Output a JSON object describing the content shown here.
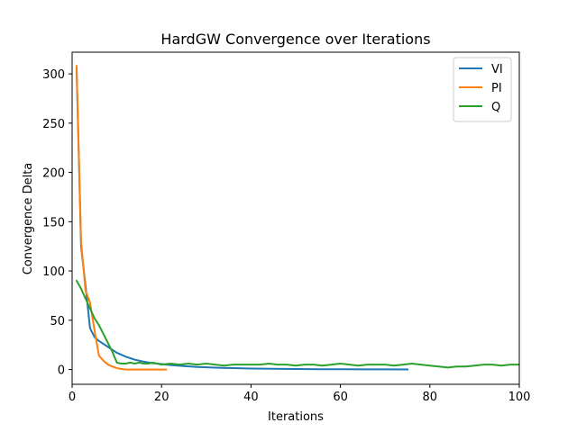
{
  "chart_data": {
    "type": "line",
    "title": "HardGW Convergence over Iterations",
    "xlabel": "Iterations",
    "ylabel": "Convergence Delta",
    "xlim": [
      0,
      100
    ],
    "ylim": [
      -15,
      322
    ],
    "xticks": [
      0,
      20,
      40,
      60,
      80,
      100
    ],
    "yticks": [
      0,
      50,
      100,
      150,
      200,
      250,
      300
    ],
    "grid": false,
    "legend_position": "top-right",
    "series": [
      {
        "name": "VI",
        "color": "#1f77b4",
        "x": [
          1,
          2,
          3,
          4,
          5,
          6,
          7,
          8,
          9,
          10,
          12,
          14,
          16,
          18,
          20,
          22,
          25,
          28,
          32,
          36,
          40,
          45,
          50,
          55,
          60,
          65,
          70,
          75
        ],
        "y": [
          305,
          125,
          85,
          42,
          33,
          29,
          26,
          23,
          20,
          17,
          13,
          10,
          8,
          6.5,
          5.5,
          4.5,
          3.5,
          2.6,
          1.9,
          1.4,
          1.0,
          0.7,
          0.5,
          0.35,
          0.25,
          0.2,
          0.15,
          0.1
        ]
      },
      {
        "name": "PI",
        "color": "#ff7f0e",
        "x": [
          1,
          2,
          3,
          4,
          5,
          6,
          7,
          8,
          9,
          10,
          11,
          12,
          13,
          14,
          15,
          16,
          17,
          18,
          19,
          20,
          21
        ],
        "y": [
          308,
          130,
          80,
          68,
          40,
          14,
          9,
          5,
          3,
          1.5,
          0.5,
          0,
          0,
          0,
          0,
          0,
          0,
          0,
          0,
          0,
          0
        ]
      },
      {
        "name": "Q",
        "color": "#2ca02c",
        "x": [
          1,
          2,
          3,
          4,
          5,
          6,
          7,
          8,
          9,
          10,
          11,
          12,
          13,
          14,
          15,
          16,
          17,
          18,
          19,
          20,
          22,
          24,
          26,
          28,
          30,
          32,
          34,
          36,
          38,
          40,
          42,
          44,
          46,
          48,
          50,
          52,
          54,
          56,
          58,
          60,
          62,
          64,
          66,
          68,
          70,
          72,
          74,
          76,
          78,
          80,
          82,
          84,
          86,
          88,
          90,
          92,
          94,
          96,
          98,
          100
        ],
        "y": [
          90,
          82,
          72,
          62,
          52,
          45,
          36,
          27,
          18,
          7,
          6,
          6,
          7,
          6,
          7,
          6,
          6,
          7,
          6,
          5,
          6,
          5,
          6,
          5,
          6,
          5,
          4,
          5,
          5,
          5,
          5,
          6,
          5,
          5,
          4,
          5,
          5,
          4,
          5,
          6,
          5,
          4,
          5,
          5,
          5,
          4,
          5,
          6,
          5,
          4,
          3,
          2,
          3,
          3,
          4,
          5,
          5,
          4,
          5,
          5
        ]
      }
    ]
  }
}
